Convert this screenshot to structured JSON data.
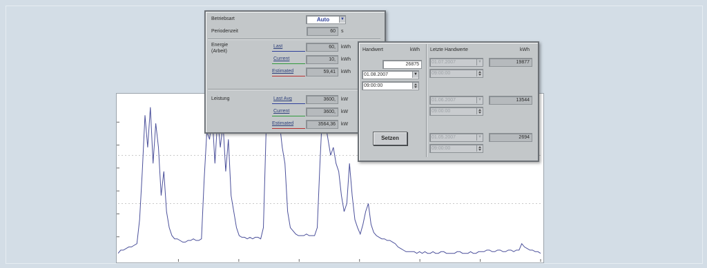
{
  "panel1": {
    "betriebsart_label": "Betriebsart",
    "betriebsart_value": "Auto",
    "periodenzeit_label": "Periodenzeit",
    "periodenzeit_value": "60",
    "periodenzeit_unit": "s",
    "energie_label_1": "Energie",
    "energie_label_2": "(Arbeit)",
    "energie_rows": [
      {
        "label": "Last",
        "value": "60,",
        "unit": "kWh",
        "color": "#2d3f9a"
      },
      {
        "label": "Current",
        "value": "10,",
        "unit": "kWh",
        "color": "#2f9a3a"
      },
      {
        "label": "Estimated",
        "value": "59,41",
        "unit": "kWh",
        "color": "#b83030"
      }
    ],
    "leistung_label": "Leistung",
    "leistung_rows": [
      {
        "label": "Last Avg",
        "value": "3600,",
        "unit": "kW",
        "color": "#2d3f9a"
      },
      {
        "label": "Current",
        "value": "3600,",
        "unit": "kW",
        "color": "#2f9a3a"
      },
      {
        "label": "Estimated",
        "value": "3564,36",
        "unit": "kW",
        "color": "#b83030"
      }
    ]
  },
  "panel2": {
    "handwert_label": "Handwert",
    "handwert_unit": "kWh",
    "handwert_value": "26875",
    "date_value": "01.08.2007",
    "time_value": "09:00:00",
    "letzte_label": "Letzte Handwerte",
    "letzte_unit": "kWh",
    "history": [
      {
        "date": "01.07.2007",
        "time": "09:00:00",
        "value": "19877"
      },
      {
        "date": "01.06.2007",
        "time": "09:00:00",
        "value": "13544"
      },
      {
        "date": "01.05.2007",
        "time": "09:00:00",
        "value": "2694"
      }
    ],
    "set_button": "Setzen"
  },
  "chart_data": {
    "type": "line",
    "ylim": [
      0,
      100
    ],
    "grid": "dotted horizontal at 35 and 65",
    "series": [
      {
        "color": "#4a4f9a",
        "values": [
          4,
          6,
          6,
          7,
          8,
          8,
          9,
          10,
          25,
          55,
          90,
          70,
          95,
          60,
          85,
          70,
          40,
          55,
          30,
          20,
          15,
          13,
          13,
          12,
          11,
          11,
          12,
          12,
          13,
          12,
          12,
          13,
          50,
          80,
          75,
          90,
          60,
          88,
          70,
          85,
          55,
          75,
          40,
          30,
          20,
          15,
          14,
          14,
          13,
          14,
          13,
          14,
          14,
          13,
          20,
          80,
          100,
          95,
          90,
          100,
          85,
          70,
          60,
          30,
          20,
          18,
          16,
          15,
          15,
          15,
          16,
          15,
          15,
          15,
          20,
          60,
          95,
          85,
          75,
          65,
          70,
          60,
          55,
          40,
          30,
          35,
          60,
          40,
          25,
          20,
          16,
          22,
          30,
          35,
          22,
          17,
          15,
          14,
          13,
          13,
          12,
          12,
          11,
          10,
          8,
          7,
          6,
          5,
          5,
          5,
          5,
          4,
          5,
          4,
          5,
          4,
          4,
          5,
          4,
          4,
          5,
          5,
          4,
          4,
          4,
          4,
          5,
          5,
          4,
          4,
          4,
          5,
          4,
          4,
          5,
          5,
          5,
          6,
          6,
          5,
          5,
          6,
          6,
          5,
          5,
          6,
          6,
          5,
          6,
          6,
          10,
          8,
          7,
          6,
          6,
          5,
          5,
          4
        ]
      }
    ]
  }
}
